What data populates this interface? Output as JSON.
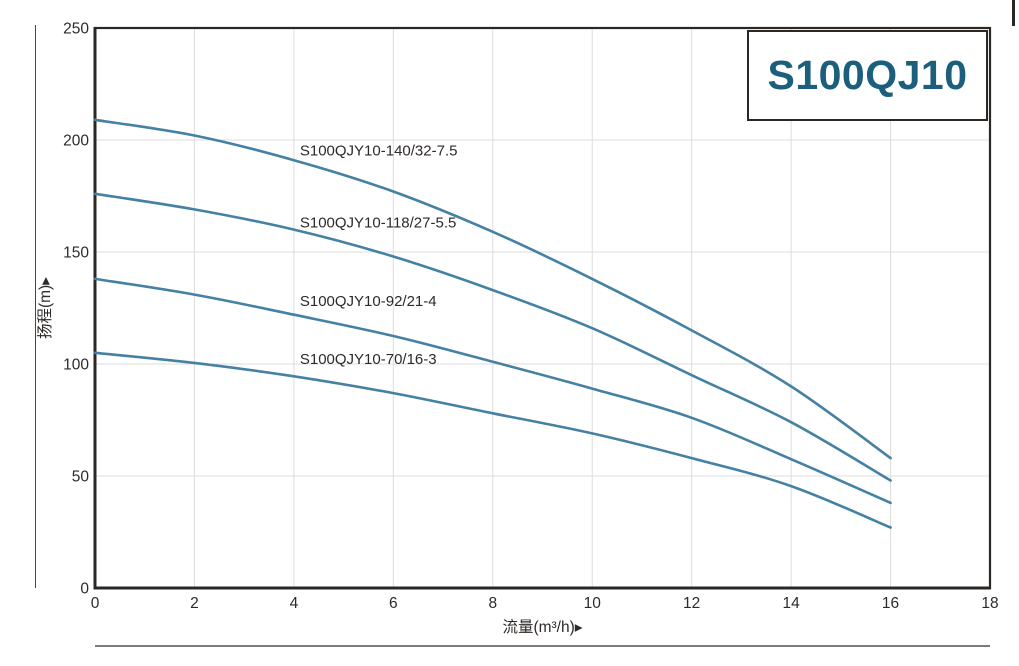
{
  "title_box": {
    "label": "S100QJ10"
  },
  "chart_data": {
    "type": "line",
    "title": "S100QJ10",
    "xlabel": "流量(m³/h)▸",
    "ylabel": "扬程(m)▸",
    "xlim": [
      0,
      18
    ],
    "ylim": [
      0,
      250
    ],
    "xticks": [
      0,
      2,
      4,
      6,
      8,
      10,
      12,
      14,
      16,
      18
    ],
    "yticks": [
      0,
      50,
      100,
      150,
      200,
      250
    ],
    "grid": true,
    "legend_position": "inline-curve-labels",
    "colors": {
      "curve": "#4581a3",
      "title_text": "#1b5f7d",
      "frame": "#2b2724",
      "gridline": "#dcdcdc",
      "label_text": "#2e2a28"
    },
    "x": [
      0,
      2,
      4,
      6,
      8,
      10,
      12,
      14,
      16
    ],
    "series": [
      {
        "name": "S100QJY10-140/32-7.5",
        "values": [
          209,
          202,
          191,
          177,
          159,
          138,
          115,
          90,
          58
        ]
      },
      {
        "name": "S100QJY10-118/27-5.5",
        "values": [
          176,
          169,
          160,
          148,
          133,
          116,
          95,
          74,
          48
        ]
      },
      {
        "name": "S100QJY10-92/21-4",
        "values": [
          138,
          131,
          122,
          112.5,
          101,
          89,
          76,
          57.5,
          38
        ]
      },
      {
        "name": "S100QJY10-70/16-3",
        "values": [
          105,
          100.5,
          94.5,
          87,
          78,
          69,
          58,
          45.5,
          27
        ]
      }
    ],
    "annotations": [
      {
        "text": "S100QJY10-140/32-7.5",
        "x": 4.12,
        "y": 193
      },
      {
        "text": "S100QJY10-118/27-5.5",
        "x": 4.12,
        "y": 161
      },
      {
        "text": "S100QJY10-92/21-4",
        "x": 4.12,
        "y": 126
      },
      {
        "text": "S100QJY10-70/16-3",
        "x": 4.12,
        "y": 100
      }
    ]
  }
}
